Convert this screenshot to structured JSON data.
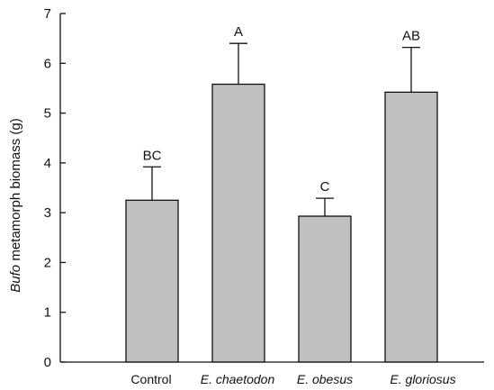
{
  "chart_data": {
    "type": "bar",
    "categories": [
      "Control",
      "E. chaetodon",
      "E. obesus",
      "E. gloriosus"
    ],
    "category_italic": [
      false,
      true,
      true,
      true
    ],
    "values": [
      3.25,
      5.58,
      2.93,
      5.42
    ],
    "error": [
      0.67,
      0.82,
      0.36,
      0.9
    ],
    "significance_labels": [
      "BC",
      "A",
      "C",
      "AB"
    ],
    "ylabel_italic": "Bufo",
    "ylabel_rest": " metamorph biomass (g)",
    "ylim": [
      0,
      7
    ],
    "yticks": [
      0,
      1,
      2,
      3,
      4,
      5,
      6,
      7
    ],
    "bar_color": "#c0c0c0",
    "grid": false
  }
}
